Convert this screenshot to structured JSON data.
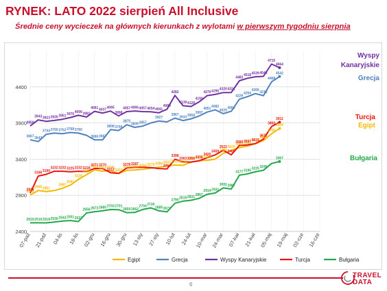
{
  "header": {
    "title": "RYNEK: LATO 2022 sierpień All Inclusive",
    "subtitle_main": "Średnie ceny wycieczek na głównych kierunkach z wylotami ",
    "subtitle_emph": "w pierwszym tygodniu sierpnia"
  },
  "footer": {
    "page_number": "6"
  },
  "logo": {
    "word1": "TRAVEL",
    "word2": "DATA"
  },
  "colors": {
    "title": "#c8102e",
    "egipt": "#f5b800",
    "grecja": "#4f81bd",
    "wyspy_kanaryjskie": "#7030a0",
    "turcja": "#e8150d",
    "bulgaria": "#22a84a"
  },
  "chart_data": {
    "type": "line",
    "ylim": [
      2400,
      4900
    ],
    "yticks": [
      2400,
      2900,
      3400,
      3900,
      4400
    ],
    "grid": true,
    "legend": "bottom",
    "x": [
      "07-paź",
      "14-paź",
      "21-paź",
      "28-paź",
      "04-lis",
      "11-lis",
      "18-lis",
      "25-lis",
      "02-gru",
      "09-gru",
      "16-gru",
      "23-gru",
      "30-gru",
      "06-sty",
      "13-sty",
      "20-sty",
      "27-sty",
      "03-lut",
      "10-lut",
      "17-lut",
      "24-lut",
      "03-mar",
      "10-mar",
      "17-mar",
      "24-mar",
      "31-mar",
      "07-kwi",
      "14-kwi",
      "21-kwi",
      "28-kwi",
      "05-maj",
      "12-maj",
      "19-maj",
      "26-maj",
      "02-cze",
      "09-cze",
      "16-cze"
    ],
    "xtick_labels": [
      "07-paź",
      "21-paź",
      "04-lis",
      "18-lis",
      "02-gru",
      "16-gru",
      "30-gru",
      "13-sty",
      "27-sty",
      "10-lut",
      "24-lut",
      "10-mar",
      "24-mar",
      "07-kwi",
      "21-kwi",
      "05-maj",
      "19-maj",
      "02-cze",
      "16-cze"
    ],
    "series": [
      {
        "name": "Egipt",
        "color": "#f5b800",
        "values": [
          2905,
          2966,
          2951,
          2965,
          2997,
          3041,
          3120,
          3185,
          3251,
          3233,
          3240,
          3202,
          3245,
          3250,
          3260,
          3275,
          3288,
          3307,
          3319,
          3315,
          3358,
          3380,
          3382,
          3400,
          3480,
          3520,
          3560,
          3580,
          3613,
          3657,
          3750,
          3824,
          null,
          null,
          null,
          null,
          null
        ],
        "labels": {
          "0": "2905",
          "1": "2966",
          "2": "2951",
          "4": "2997",
          "5": "3041",
          "6": "3120",
          "7": "3185",
          "8": "3251",
          "9": "3233",
          "10": "3240",
          "11": "3202",
          "12": "3245",
          "13": "3250",
          "14": "3260",
          "15": "3275",
          "16": "3288",
          "17": "3307",
          "18": "3319",
          "19": "3315",
          "20": "3358",
          "21": "3380",
          "22": "3382",
          "24": "3480",
          "25": "3520",
          "26": "3560",
          "27": "3580",
          "28": "3613",
          "29": "3657",
          "30": "3750",
          "31": "3824"
        }
      },
      {
        "name": "Grecja",
        "color": "#4f81bd",
        "values": [
          3667,
          3643,
          3744,
          3760,
          3752,
          3768,
          3760,
          3730,
          3666,
          3667,
          3808,
          3796,
          3875,
          3839,
          3857,
          3900,
          3927,
          3915,
          3967,
          3933,
          3958,
          3997,
          4051,
          4082,
          4029,
          4063,
          4229,
          4264,
          4306,
          4278,
          4468,
          4542,
          null,
          null,
          null,
          null,
          null
        ],
        "labels": {
          "0": "3667",
          "1": "3643",
          "2": "3744",
          "3": "3760",
          "4": "3752",
          "5": "3768",
          "6": "3760",
          "8": "3666",
          "9": "3667",
          "10": "3808",
          "11": "3796",
          "12": "3875",
          "13": "3839",
          "14": "3857",
          "16": "3927",
          "18": "3967",
          "19": "3933",
          "20": "3958",
          "21": "3997",
          "22": "4051",
          "23": "4082",
          "24": "4029",
          "25": "4063",
          "26": "4229",
          "27": "4264",
          "28": "4306",
          "29": "4278",
          "30": "4468",
          "31": "4542"
        }
      },
      {
        "name": "Wyspy Kanaryjskie",
        "color": "#7030a0",
        "values": [
          3859,
          3943,
          3923,
          3935,
          3951,
          3976,
          4006,
          3982,
          4061,
          4037,
          4065,
          3998,
          4057,
          4066,
          4057,
          4054,
          4041,
          4089,
          4282,
          4139,
          4128,
          4192,
          4279,
          4295,
          4320,
          4321,
          4483,
          4518,
          4539,
          4545,
          4715,
          4664,
          null,
          null,
          null,
          null,
          null
        ],
        "labels": {
          "0": "3859",
          "1": "3943",
          "2": "3923",
          "3": "3935",
          "4": "3951",
          "5": "3976",
          "6": "4006",
          "7": "3982",
          "8": "4061",
          "9": "4037",
          "10": "4065",
          "11": "3998",
          "12": "4057",
          "13": "4066",
          "14": "4057",
          "15": "4054",
          "16": "4041",
          "17": "4089",
          "18": "4282",
          "19": "4139",
          "20": "4128",
          "21": "4192",
          "22": "4279",
          "23": "4295",
          "24": "4320",
          "25": "4321",
          "26": "4483",
          "27": "4518",
          "28": "4539",
          "29": "4545",
          "30": "4715",
          "31": "4664"
        }
      },
      {
        "name": "Turcja",
        "color": "#e8150d",
        "values": [
          2929,
          3166,
          3190,
          3232,
          3232,
          3225,
          3232,
          3228,
          3271,
          3270,
          3212,
          3202,
          3278,
          3287,
          3287,
          3283,
          3270,
          3264,
          3398,
          3363,
          3359,
          3376,
          3420,
          3459,
          3522,
          3460,
          3589,
          3597,
          3615,
          3677,
          3850,
          3911,
          null,
          null,
          null,
          null,
          null
        ],
        "labels": {
          "0": "2929",
          "1": "3166",
          "2": "3190",
          "3": "3232",
          "4": "3232",
          "5": "3225",
          "6": "3232",
          "7": "3228",
          "8": "3271",
          "9": "3270",
          "10": "3212",
          "12": "3278",
          "13": "3287",
          "17": "3264",
          "18": "3398",
          "19": "3363",
          "20": "3359",
          "21": "3376",
          "22": "3420",
          "23": "3459",
          "24": "3522",
          "25": "3460",
          "26": "3589",
          "27": "3597",
          "28": "3615",
          "29": "3677",
          "30": "3850",
          "31": "3911"
        }
      },
      {
        "name": "Bułgaria",
        "color": "#22a84a",
        "values": [
          2519,
          2519,
          2518,
          2530,
          2543,
          2551,
          2537,
          2656,
          2673,
          2685,
          2703,
          2701,
          2659,
          2662,
          2704,
          2726,
          2685,
          2671,
          2790,
          2819,
          2831,
          2857,
          2914,
          2931,
          3001,
          2987,
          3177,
          3195,
          3225,
          3246,
          3339,
          3367,
          null,
          null,
          null,
          null,
          null
        ],
        "labels": {
          "0": "2519",
          "1": "2519",
          "2": "2518",
          "3": "2530",
          "4": "2543",
          "5": "2551",
          "6": "2537",
          "7": "2656",
          "8": "2673",
          "9": "2685",
          "10": "2703",
          "11": "2701",
          "12": "2659",
          "13": "2662",
          "14": "2704",
          "15": "2726",
          "16": "2685",
          "17": "2671",
          "18": "2790",
          "19": "2819",
          "20": "2831",
          "21": "2857",
          "22": "2914",
          "23": "2931",
          "24": "3001",
          "25": "2987",
          "26": "3177",
          "27": "3195",
          "28": "3225",
          "29": "3246",
          "31": "3367"
        }
      }
    ],
    "end_labels": [
      {
        "series": "Wyspy Kanaryjskie",
        "lines": [
          "Wyspy",
          "Kanaryjskie"
        ],
        "color": "#7030a0"
      },
      {
        "series": "Grecja",
        "lines": [
          "Grecja"
        ],
        "color": "#4f81bd"
      },
      {
        "series": "Turcja",
        "lines": [
          "Turcja"
        ],
        "color": "#e8150d"
      },
      {
        "series": "Egipt",
        "lines": [
          "Egipt"
        ],
        "color": "#f5b800"
      },
      {
        "series": "Bułgaria",
        "lines": [
          "Bułgaria"
        ],
        "color": "#22a84a"
      }
    ]
  }
}
